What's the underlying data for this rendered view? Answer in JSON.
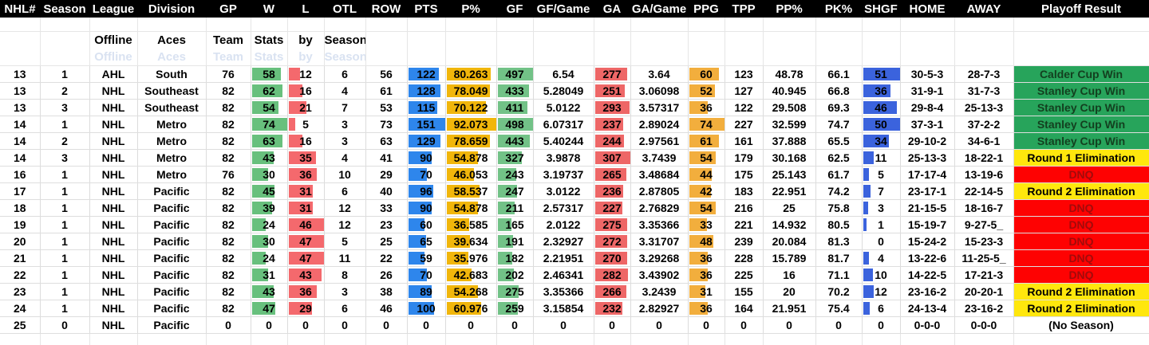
{
  "sheet_title": {
    "words": [
      "Offline",
      "Aces",
      "Team",
      "Stats",
      "by",
      "Season"
    ]
  },
  "columns": [
    {
      "key": "nhl_num",
      "label": "NHL#"
    },
    {
      "key": "season",
      "label": "Season"
    },
    {
      "key": "league",
      "label": "League"
    },
    {
      "key": "division",
      "label": "Division"
    },
    {
      "key": "gp",
      "label": "GP"
    },
    {
      "key": "w",
      "label": "W"
    },
    {
      "key": "l",
      "label": "L"
    },
    {
      "key": "otl",
      "label": "OTL"
    },
    {
      "key": "row",
      "label": "ROW"
    },
    {
      "key": "pts",
      "label": "PTS"
    },
    {
      "key": "p_pct",
      "label": "P%"
    },
    {
      "key": "gf",
      "label": "GF"
    },
    {
      "key": "gf_game",
      "label": "GF/Game"
    },
    {
      "key": "ga",
      "label": "GA"
    },
    {
      "key": "ga_game",
      "label": "GA/Game"
    },
    {
      "key": "ppg",
      "label": "PPG"
    },
    {
      "key": "tpp",
      "label": "TPP"
    },
    {
      "key": "pp_pct",
      "label": "PP%"
    },
    {
      "key": "pk_pct",
      "label": "PK%"
    },
    {
      "key": "shgf",
      "label": "SHGF"
    },
    {
      "key": "home",
      "label": "HOME"
    },
    {
      "key": "away",
      "label": "AWAY"
    },
    {
      "key": "playoff",
      "label": "Playoff Result"
    }
  ],
  "bar_formats": {
    "w": {
      "max": 74,
      "color": "#68c07d"
    },
    "l": {
      "max": 47,
      "color": "#f4696d"
    },
    "pts": {
      "max": 151,
      "color": "#2e86ec"
    },
    "p_pct": {
      "max": 92.073,
      "color": "#f1b60b"
    },
    "gf": {
      "max": 498,
      "color": "#72c287"
    },
    "ga": {
      "max": 307,
      "color": "#ee6767"
    },
    "ppg": {
      "max": 74,
      "color": "#f2ae3d"
    },
    "shgf": {
      "max": 51,
      "color": "#3b63dd"
    }
  },
  "result_styles": {
    "win": {
      "bg": "#27a45b",
      "text": "#133f1f"
    },
    "elimination": {
      "bg": "#ffe70d",
      "text": "#000000"
    },
    "dnq": {
      "bg": "#fe0202",
      "text": "#a20b0b"
    },
    "none": {
      "bg": "",
      "text": "#000000"
    }
  },
  "rows": [
    {
      "cells": [
        "13",
        "1",
        "AHL",
        "South",
        "76",
        "58",
        "12",
        "6",
        "56",
        "122",
        "80.263",
        "497",
        "6.54",
        "277",
        "3.64",
        "60",
        "123",
        "48.78",
        "66.1",
        "51",
        "30-5-3",
        "28-7-3",
        "Calder Cup Win"
      ],
      "result": "win"
    },
    {
      "cells": [
        "13",
        "2",
        "NHL",
        "Southeast",
        "82",
        "62",
        "16",
        "4",
        "61",
        "128",
        "78.049",
        "433",
        "5.28049",
        "251",
        "3.06098",
        "52",
        "127",
        "40.945",
        "66.8",
        "36",
        "31-9-1",
        "31-7-3",
        "Stanley Cup Win"
      ],
      "result": "win"
    },
    {
      "cells": [
        "13",
        "3",
        "NHL",
        "Southeast",
        "82",
        "54",
        "21",
        "7",
        "53",
        "115",
        "70.122",
        "411",
        "5.0122",
        "293",
        "3.57317",
        "36",
        "122",
        "29.508",
        "69.3",
        "46",
        "29-8-4",
        "25-13-3",
        "Stanley Cup Win"
      ],
      "result": "win"
    },
    {
      "cells": [
        "14",
        "1",
        "NHL",
        "Metro",
        "82",
        "74",
        "5",
        "3",
        "73",
        "151",
        "92.073",
        "498",
        "6.07317",
        "237",
        "2.89024",
        "74",
        "227",
        "32.599",
        "74.7",
        "50",
        "37-3-1",
        "37-2-2",
        "Stanley Cup Win"
      ],
      "result": "win"
    },
    {
      "cells": [
        "14",
        "2",
        "NHL",
        "Metro",
        "82",
        "63",
        "16",
        "3",
        "63",
        "129",
        "78.659",
        "443",
        "5.40244",
        "244",
        "2.97561",
        "61",
        "161",
        "37.888",
        "65.5",
        "34",
        "29-10-2",
        "34-6-1",
        "Stanley Cup Win"
      ],
      "result": "win"
    },
    {
      "cells": [
        "14",
        "3",
        "NHL",
        "Metro",
        "82",
        "43",
        "35",
        "4",
        "41",
        "90",
        "54.878",
        "327",
        "3.9878",
        "307",
        "3.7439",
        "54",
        "179",
        "30.168",
        "62.5",
        "11",
        "25-13-3",
        "18-22-1",
        "Round 1 Elimination"
      ],
      "result": "elimination"
    },
    {
      "cells": [
        "16",
        "1",
        "NHL",
        "Metro",
        "76",
        "30",
        "36",
        "10",
        "29",
        "70",
        "46.053",
        "243",
        "3.19737",
        "265",
        "3.48684",
        "44",
        "175",
        "25.143",
        "61.7",
        "5",
        "17-17-4",
        "13-19-6",
        "DNQ"
      ],
      "result": "dnq"
    },
    {
      "cells": [
        "17",
        "1",
        "NHL",
        "Pacific",
        "82",
        "45",
        "31",
        "6",
        "40",
        "96",
        "58.537",
        "247",
        "3.0122",
        "236",
        "2.87805",
        "42",
        "183",
        "22.951",
        "74.2",
        "7",
        "23-17-1",
        "22-14-5",
        "Round 2 Elimination"
      ],
      "result": "elimination"
    },
    {
      "cells": [
        "18",
        "1",
        "NHL",
        "Pacific",
        "82",
        "39",
        "31",
        "12",
        "33",
        "90",
        "54.878",
        "211",
        "2.57317",
        "227",
        "2.76829",
        "54",
        "216",
        "25",
        "75.8",
        "3",
        "21-15-5",
        "18-16-7",
        "DNQ"
      ],
      "result": "dnq"
    },
    {
      "cells": [
        "19",
        "1",
        "NHL",
        "Pacific",
        "82",
        "24",
        "46",
        "12",
        "23",
        "60",
        "36.585",
        "165",
        "2.0122",
        "275",
        "3.35366",
        "33",
        "221",
        "14.932",
        "80.5",
        "1",
        "15-19-7",
        "9-27-5_",
        "DNQ"
      ],
      "result": "dnq"
    },
    {
      "cells": [
        "20",
        "1",
        "NHL",
        "Pacific",
        "82",
        "30",
        "47",
        "5",
        "25",
        "65",
        "39.634",
        "191",
        "2.32927",
        "272",
        "3.31707",
        "48",
        "239",
        "20.084",
        "81.3",
        "0",
        "15-24-2",
        "15-23-3",
        "DNQ"
      ],
      "result": "dnq"
    },
    {
      "cells": [
        "21",
        "1",
        "NHL",
        "Pacific",
        "82",
        "24",
        "47",
        "11",
        "22",
        "59",
        "35.976",
        "182",
        "2.21951",
        "270",
        "3.29268",
        "36",
        "228",
        "15.789",
        "81.7",
        "4",
        "13-22-6",
        "11-25-5_",
        "DNQ"
      ],
      "result": "dnq"
    },
    {
      "cells": [
        "22",
        "1",
        "NHL",
        "Pacific",
        "82",
        "31",
        "43",
        "8",
        "26",
        "70",
        "42.683",
        "202",
        "2.46341",
        "282",
        "3.43902",
        "36",
        "225",
        "16",
        "71.1",
        "10",
        "14-22-5",
        "17-21-3",
        "DNQ"
      ],
      "result": "dnq"
    },
    {
      "cells": [
        "23",
        "1",
        "NHL",
        "Pacific",
        "82",
        "43",
        "36",
        "3",
        "38",
        "89",
        "54.268",
        "275",
        "3.35366",
        "266",
        "3.2439",
        "31",
        "155",
        "20",
        "70.2",
        "12",
        "23-16-2",
        "20-20-1",
        "Round 2 Elimination"
      ],
      "result": "elimination"
    },
    {
      "cells": [
        "24",
        "1",
        "NHL",
        "Pacific",
        "82",
        "47",
        "29",
        "6",
        "46",
        "100",
        "60.976",
        "259",
        "3.15854",
        "232",
        "2.82927",
        "36",
        "164",
        "21.951",
        "75.4",
        "6",
        "24-13-4",
        "23-16-2",
        "Round 2 Elimination"
      ],
      "result": "elimination"
    },
    {
      "cells": [
        "25",
        "0",
        "NHL",
        "Pacific",
        "0",
        "0",
        "0",
        "0",
        "0",
        "0",
        "0",
        "0",
        "0",
        "0",
        "0",
        "0",
        "0",
        "0",
        "0",
        "0",
        "0-0-0",
        "0-0-0",
        "(No Season)"
      ],
      "result": "none"
    }
  ]
}
